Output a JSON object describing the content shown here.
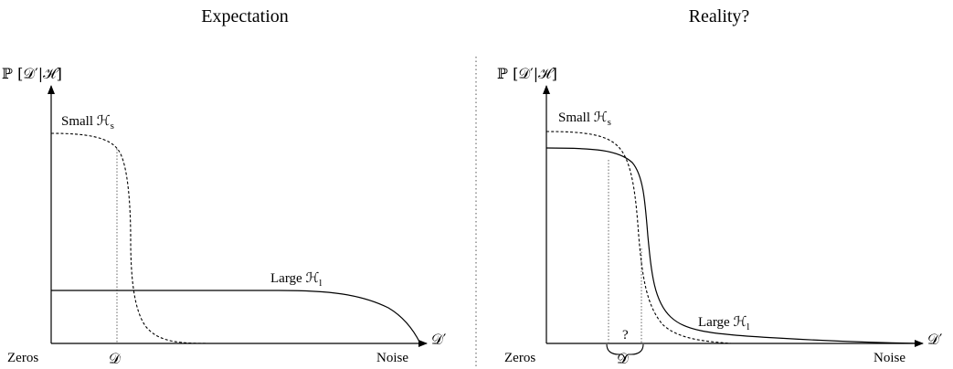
{
  "left_panel": {
    "title": "Expectation",
    "y_axis_label": "ℙ [𝒟′|ℋ]",
    "x_axis_label": "𝒟′",
    "x_start_label": "Zeros",
    "x_end_label": "Noise",
    "data_label": "𝒟",
    "small_label": "Small ℋ",
    "small_sub": "s",
    "large_label": "Large ℋ",
    "large_sub": "l"
  },
  "right_panel": {
    "title": "Reality?",
    "y_axis_label": "ℙ [𝒟′|ℋ]",
    "x_axis_label": "𝒟′",
    "x_start_label": "Zeros",
    "x_end_label": "Noise",
    "data_label": "𝒟",
    "question_mark": "?",
    "small_label": "Small ℋ",
    "small_sub": "s",
    "large_label": "Large ℋ",
    "large_sub": "l"
  }
}
